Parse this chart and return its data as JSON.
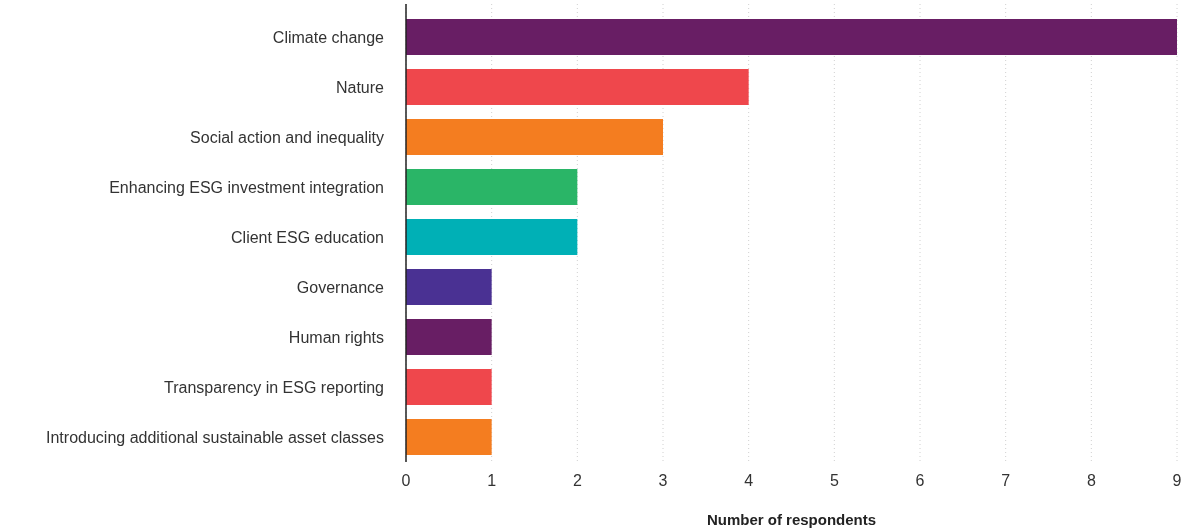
{
  "chart_data": {
    "type": "bar",
    "orientation": "horizontal",
    "xlabel": "Number of respondents",
    "categories": [
      "Climate change",
      "Nature",
      "Social action and inequality",
      "Enhancing ESG investment integration",
      "Client ESG education",
      "Governance",
      "Human rights",
      "Transparency in ESG reporting",
      "Introducing additional sustainable asset classes"
    ],
    "values": [
      9,
      4,
      3,
      2,
      2,
      1,
      1,
      1,
      1
    ],
    "colors": [
      "#681e64",
      "#ef474c",
      "#f47d20",
      "#2ab567",
      "#00b0b6",
      "#4a3193",
      "#681e64",
      "#ef474c",
      "#f47d20"
    ],
    "xlim": [
      0,
      9
    ],
    "xticks": [
      0,
      1,
      2,
      3,
      4,
      5,
      6,
      7,
      8,
      9
    ],
    "grid": "x"
  }
}
